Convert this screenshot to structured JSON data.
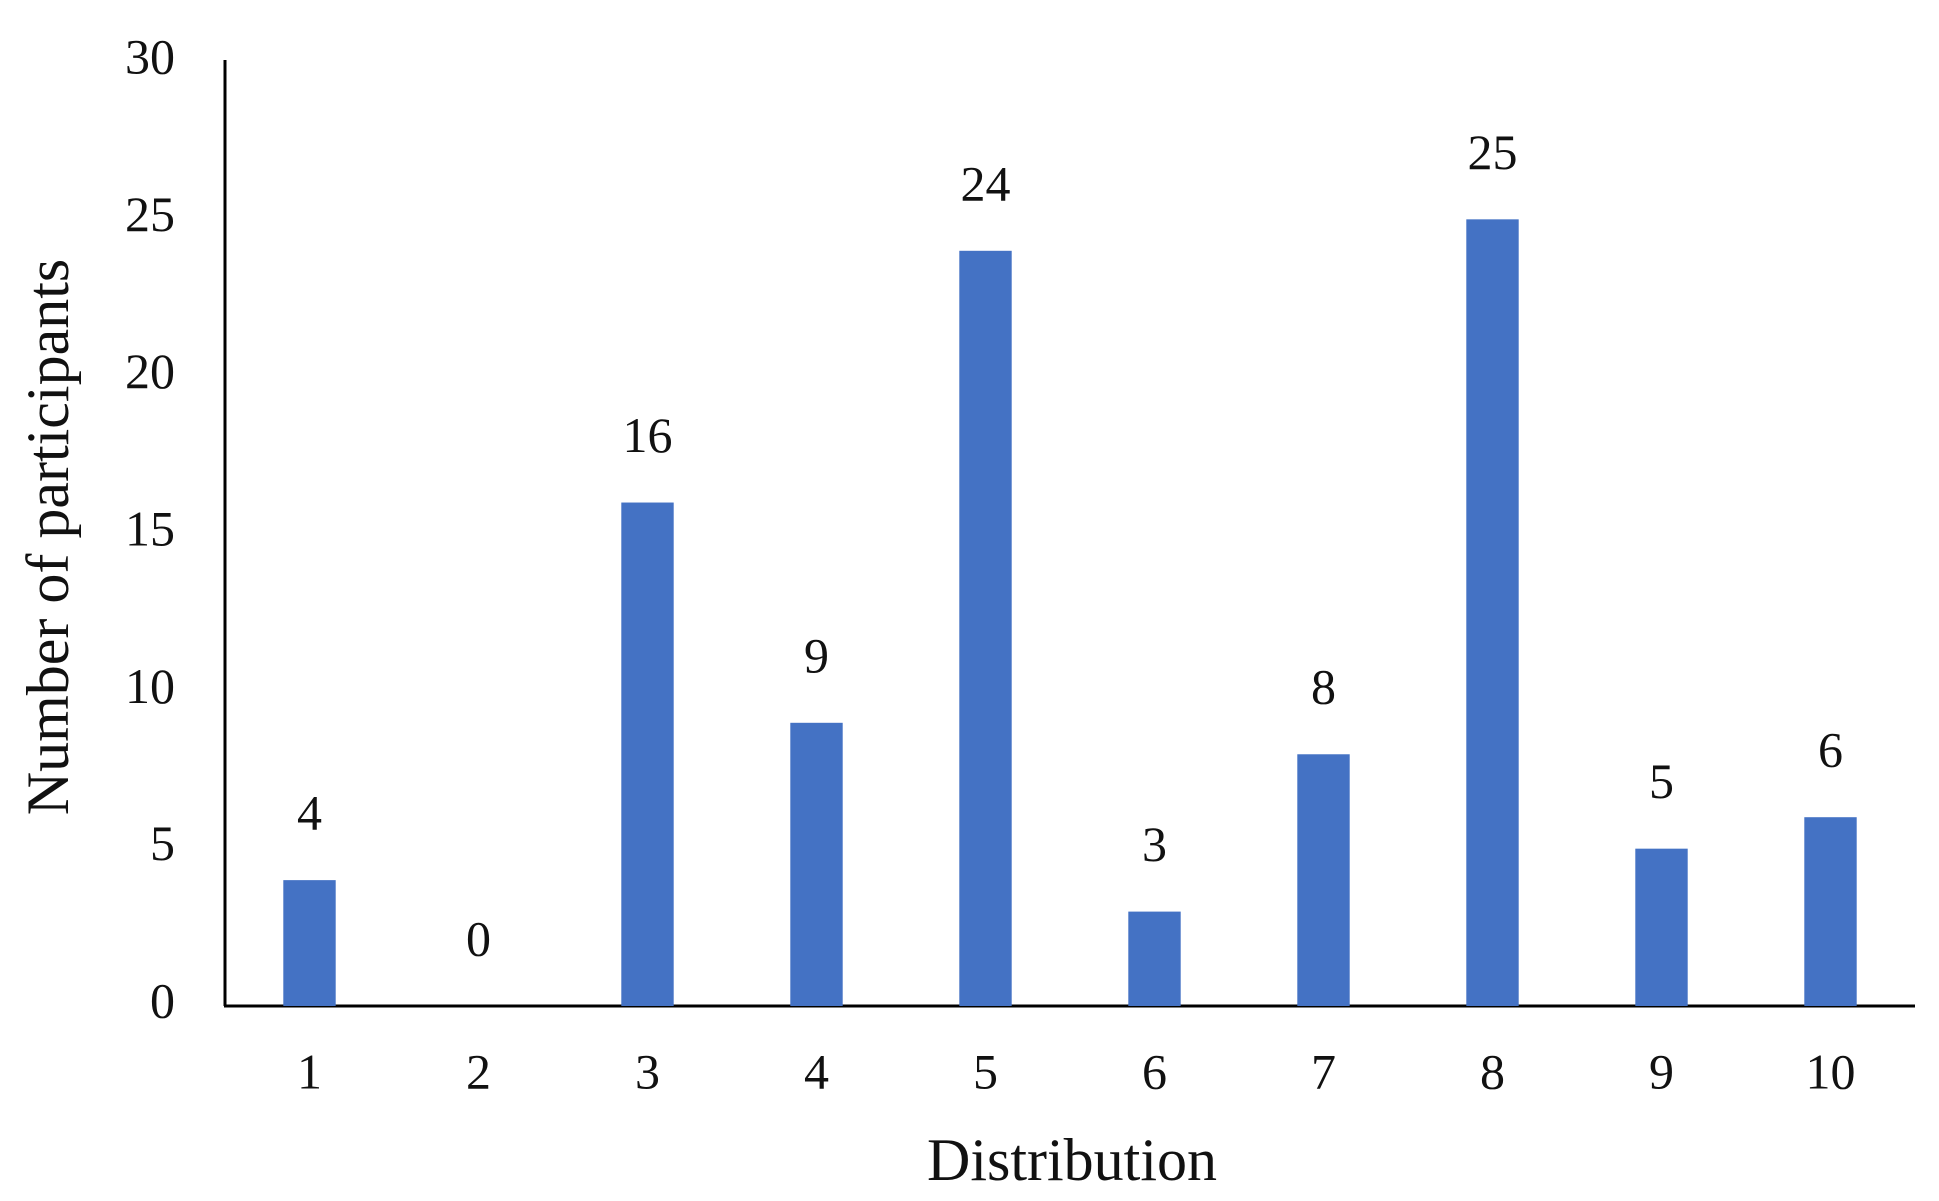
{
  "chart_data": {
    "type": "bar",
    "x_label": "Distribution",
    "y_label": "Number of participants",
    "categories": [
      "1",
      "2",
      "3",
      "4",
      "5",
      "6",
      "7",
      "8",
      "9",
      "10"
    ],
    "values": [
      4,
      0,
      16,
      9,
      24,
      3,
      8,
      25,
      5,
      6
    ],
    "show_value_labels": true,
    "color": "#4472c4",
    "ylim": [
      0,
      30
    ],
    "yticks": [
      0,
      5,
      10,
      15,
      20,
      25,
      30
    ],
    "grid": false
  }
}
